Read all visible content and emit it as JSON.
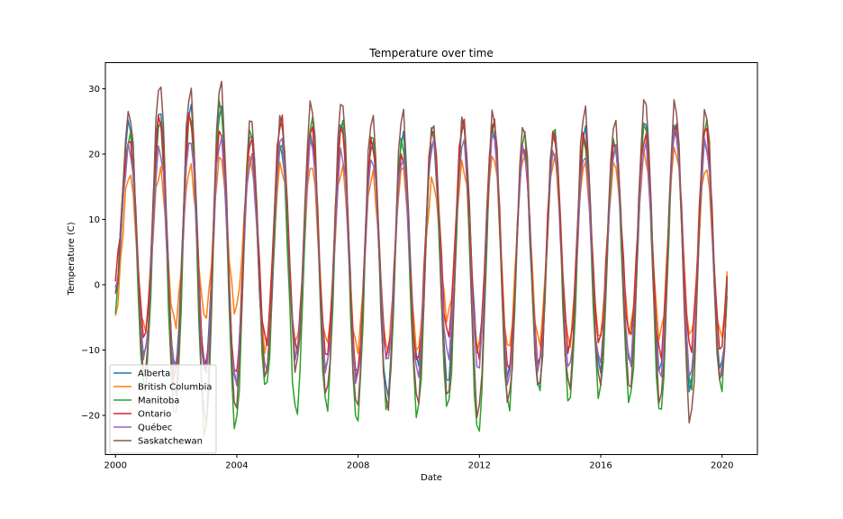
{
  "chart_data": {
    "type": "line",
    "title": "Temperature over time",
    "xlabel": "Date",
    "ylabel": "Temperature (C)",
    "xlim": [
      "1999-09",
      "2021-03"
    ],
    "ylim": [
      -26,
      34
    ],
    "xticks": [
      "2000",
      "2004",
      "2008",
      "2012",
      "2016",
      "2020"
    ],
    "yticks": [
      -20,
      -10,
      0,
      10,
      20,
      30
    ],
    "grid": false,
    "legend": "lower-left",
    "start_month": "2000-01",
    "end_month": "2020-03",
    "series": [
      {
        "name": "Alberta",
        "color": "#1f77b4",
        "summer_peaks": [
          25,
          27,
          27.5,
          27,
          23,
          21,
          23,
          25,
          22,
          23,
          22,
          25,
          24,
          21,
          24,
          24,
          21,
          25,
          24,
          22,
          20
        ],
        "winter_troughs": [
          -2,
          -11,
          -13,
          -13,
          -15,
          -14,
          -11,
          -13,
          -14,
          -17,
          -12,
          -15,
          -10,
          -14,
          -16,
          -16,
          -13,
          -12,
          -13,
          -16,
          -13
        ]
      },
      {
        "name": "British Columbia",
        "color": "#ff7f0e",
        "summer_peaks": [
          17,
          17.5,
          18,
          19.5,
          19,
          18.5,
          18.5,
          18,
          17,
          18,
          16,
          18.5,
          20,
          20,
          19.5,
          18.5,
          18.5,
          20,
          21,
          18,
          18
        ],
        "winter_troughs": [
          -5.5,
          -7,
          -6,
          -5,
          -4,
          -10,
          -9,
          -9,
          -10,
          -10,
          -10,
          -5,
          -10,
          -10,
          -9,
          -9,
          -8,
          -7,
          -8,
          -8,
          -8
        ]
      },
      {
        "name": "Manitoba",
        "color": "#2ca02c",
        "summer_peaks": [
          23,
          25,
          26,
          28,
          24,
          22,
          25.5,
          25,
          23,
          22,
          24,
          25,
          25,
          23,
          24,
          22,
          22,
          25,
          25,
          25,
          25
        ],
        "winter_troughs": [
          -4,
          -16,
          -20,
          -23,
          -22,
          -16,
          -20,
          -19,
          -21,
          -19,
          -20,
          -19,
          -23,
          -19,
          -16,
          -18,
          -17,
          -18,
          -20,
          -16,
          -16
        ]
      },
      {
        "name": "Ontario",
        "color": "#d62728",
        "summer_peaks": [
          22,
          25.5,
          26,
          24,
          22.5,
          25.5,
          24,
          24,
          22,
          20,
          24,
          25,
          25,
          21,
          23,
          23,
          22,
          23,
          24,
          24,
          23
        ],
        "winter_troughs": [
          1,
          -8,
          -14,
          -13,
          -14,
          -9,
          -10,
          -11,
          -14,
          -11,
          -12,
          -8,
          -11,
          -13,
          -12,
          -10,
          -9,
          -8,
          -11,
          -10,
          -10
        ]
      },
      {
        "name": "Québec",
        "color": "#9467bd",
        "summer_peaks": [
          21,
          21,
          22.5,
          22.5,
          19.5,
          22.5,
          22,
          20.5,
          19.5,
          19.5,
          22,
          22,
          23,
          21,
          20.5,
          20,
          21,
          21.5,
          24,
          22,
          22
        ],
        "winter_troughs": [
          -2,
          -11,
          -13,
          -14,
          -15,
          -13,
          -11,
          -13,
          -15,
          -12,
          -14,
          -11,
          -13,
          -15,
          -13,
          -13,
          -12,
          -12,
          -14,
          -14,
          -14
        ]
      },
      {
        "name": "Saskatchewan",
        "color": "#8c564b",
        "summer_peaks": [
          26.5,
          31,
          30,
          31,
          25.5,
          25.5,
          28,
          28.5,
          26,
          26.5,
          24.5,
          25.5,
          26.5,
          24.5,
          23.5,
          27,
          25,
          28.5,
          28,
          27,
          25
        ],
        "winter_troughs": [
          -3,
          -14,
          -17,
          -21,
          -19,
          -14,
          -13,
          -17,
          -19,
          -19,
          -18,
          -17,
          -20,
          -18,
          -16,
          -16,
          -15,
          -16,
          -18,
          -21,
          -15
        ]
      }
    ]
  }
}
